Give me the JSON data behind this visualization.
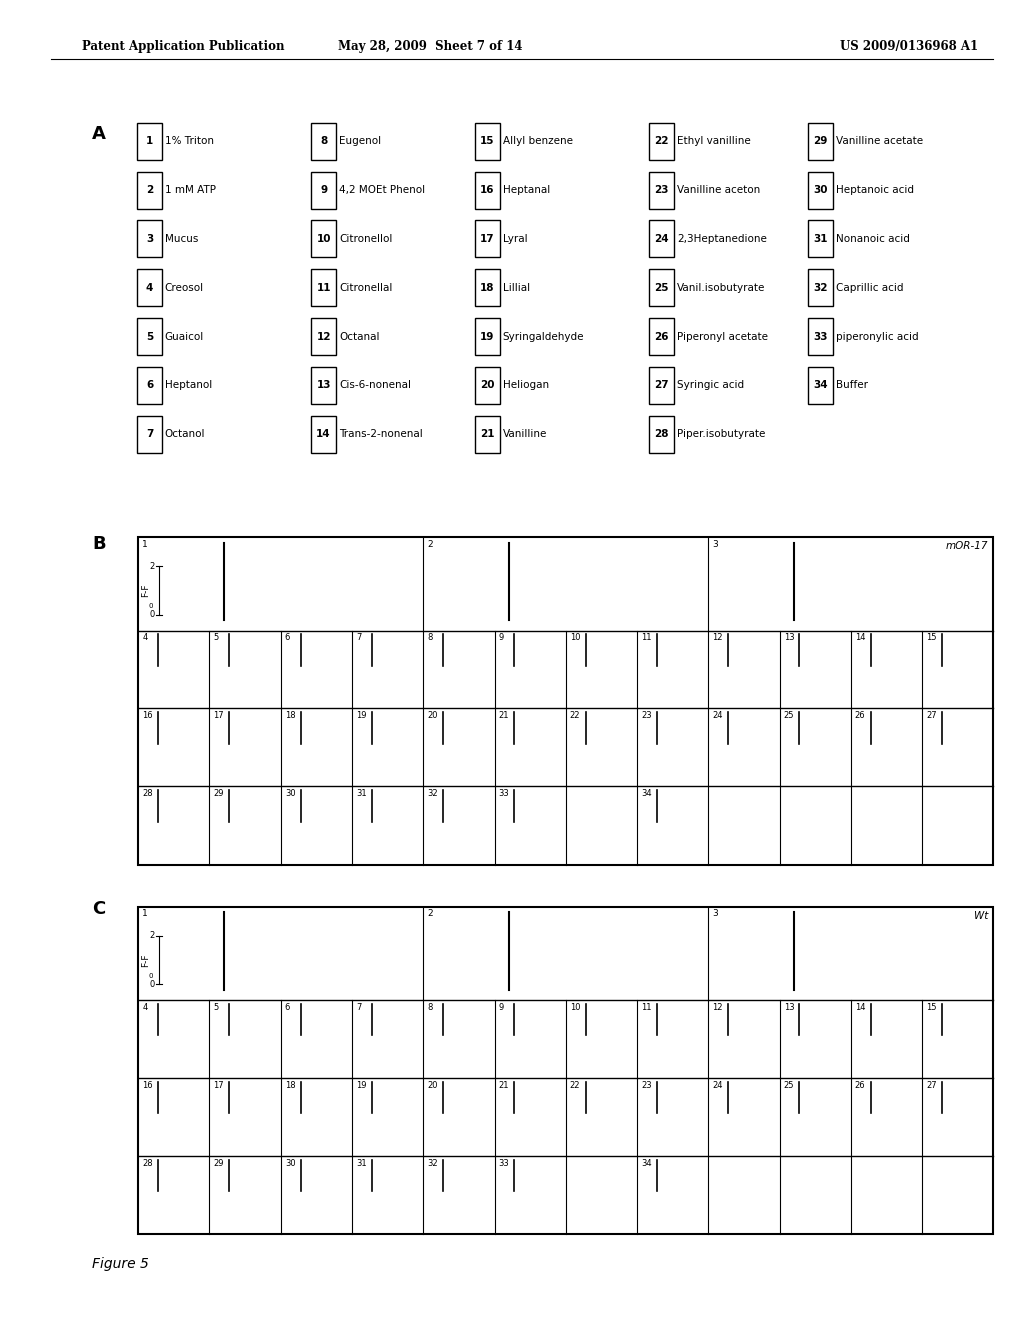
{
  "header_left": "Patent Application Publication",
  "header_mid": "May 28, 2009  Sheet 7 of 14",
  "header_right": "US 2009/0136968 A1",
  "section_A_label": "A",
  "section_B_label": "B",
  "section_C_label": "C",
  "legend": [
    [
      "1",
      "1% Triton",
      "8",
      "Eugenol",
      "15",
      "Allyl benzene",
      "22",
      "Ethyl vanilline",
      "29",
      "Vanilline acetate"
    ],
    [
      "2",
      "1 mM ATP",
      "9",
      "4,2 MOEt Phenol",
      "16",
      "Heptanal",
      "23",
      "Vanilline aceton",
      "30",
      "Heptanoic acid"
    ],
    [
      "3",
      "Mucus",
      "10",
      "Citronellol",
      "17",
      "Lyral",
      "24",
      "2,3Heptanedione",
      "31",
      "Nonanoic acid"
    ],
    [
      "4",
      "Creosol",
      "11",
      "Citronellal",
      "18",
      "Lillial",
      "25",
      "Vanil.isobutyrate",
      "32",
      "Caprillic acid"
    ],
    [
      "5",
      "Guaicol",
      "12",
      "Octanal",
      "19",
      "Syringaldehyde",
      "26",
      "Piperonyl acetate",
      "33",
      "piperonylic acid"
    ],
    [
      "6",
      "Heptanol",
      "13",
      "Cis-6-nonenal",
      "20",
      "Heliogan",
      "27",
      "Syringic acid",
      "34",
      "Buffer"
    ],
    [
      "7",
      "Octanol",
      "14",
      "Trans-2-nonenal",
      "21",
      "Vanilline",
      "28",
      "Piper.isobutyrate",
      "",
      ""
    ]
  ],
  "panel_B_label": "mOR-17",
  "panel_C_label": "Wt",
  "yaxis_label": "F-F",
  "yaxis_sub": "0",
  "ytick_top": "2",
  "ytick_bot": "0",
  "background": "#ffffff",
  "text_color": "#000000",
  "fig_caption": "Figure 5"
}
